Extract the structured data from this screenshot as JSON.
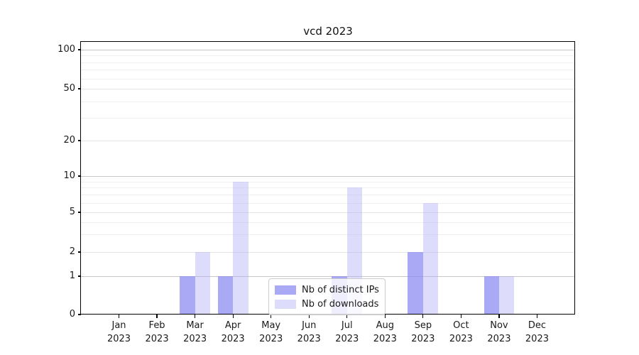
{
  "chart_data": {
    "type": "bar",
    "title": "vcd 2023",
    "categories": [
      "Jan 2023",
      "Feb 2023",
      "Mar 2023",
      "Apr 2023",
      "May 2023",
      "Jun 2023",
      "Jul 2023",
      "Aug 2023",
      "Sep 2023",
      "Oct 2023",
      "Nov 2023",
      "Dec 2023"
    ],
    "series": [
      {
        "name": "Nb of distinct IPs",
        "color": "#8c8cf2bf",
        "values": [
          0,
          0,
          1,
          1,
          0,
          0,
          1,
          0,
          2,
          0,
          1,
          0
        ]
      },
      {
        "name": "Nb of downloads",
        "color": "#afaff56b",
        "values": [
          0,
          0,
          2,
          9,
          0,
          0,
          8,
          0,
          6,
          0,
          1,
          0
        ]
      }
    ],
    "xlabel": "",
    "ylabel": "",
    "yticks": [
      0,
      1,
      2,
      5,
      10,
      20,
      50,
      100
    ],
    "ylim": [
      0,
      100
    ],
    "yscale": "symlog",
    "grid": true,
    "legend_position": "lower center"
  }
}
